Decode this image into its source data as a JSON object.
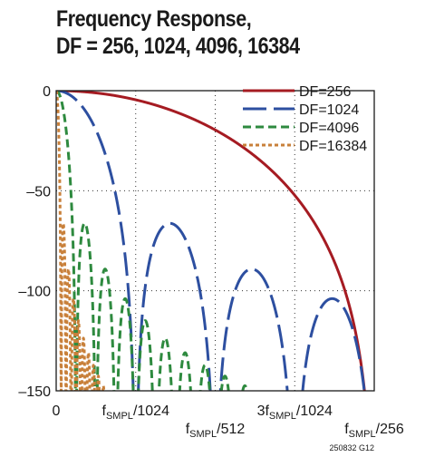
{
  "chart_data": {
    "type": "line",
    "title_line1": "Frequency Response,",
    "title_line2": "DF = 256, 1024, 4096, 16384",
    "xlabel": "",
    "ylabel": "",
    "ylim": [
      -150,
      0
    ],
    "y_ticks": [
      {
        "value": 0,
        "label": "0"
      },
      {
        "value": -50,
        "label": "–50"
      },
      {
        "value": -100,
        "label": "–100"
      },
      {
        "value": -150,
        "label": "–150"
      }
    ],
    "x_ticks": [
      {
        "value": 0,
        "base": "0",
        "sub": "",
        "suffix": "",
        "row": 0
      },
      {
        "value": 1,
        "base": "f",
        "sub": "SMPL",
        "suffix": "/1024",
        "row": 0
      },
      {
        "value": 2,
        "base": "f",
        "sub": "SMPL",
        "suffix": "/512",
        "row": 1
      },
      {
        "value": 3,
        "base": "3f",
        "sub": "SMPL",
        "suffix": "/1024",
        "row": 0
      },
      {
        "value": 4,
        "base": "f",
        "sub": "SMPL",
        "suffix": "/256",
        "row": 1
      }
    ],
    "x_unit_note": "x in units of fSMPL/1024",
    "xlim": [
      0,
      4
    ],
    "grid": "dotted",
    "legend_position": "top-right",
    "series": [
      {
        "name": "DF=256",
        "color": "#a51b22",
        "dash": "solid",
        "decimation": 256
      },
      {
        "name": "DF=1024",
        "color": "#2d4fa0",
        "dash": "long-dash",
        "decimation": 1024
      },
      {
        "name": "DF=4096",
        "color": "#2e8a3f",
        "dash": "dash",
        "decimation": 4096
      },
      {
        "name": "DF=16384",
        "color": "#c8803a",
        "dash": "short-dash",
        "decimation": 16384
      }
    ],
    "footnote": "250832 G12"
  }
}
